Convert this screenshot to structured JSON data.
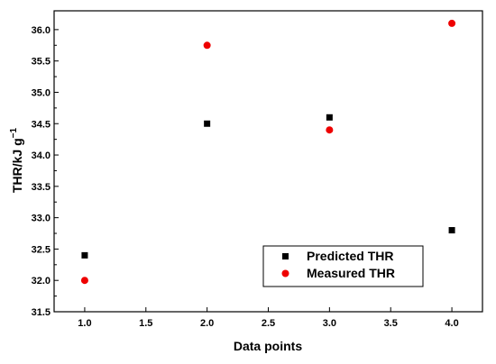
{
  "chart_data": {
    "type": "scatter",
    "xlabel": "Data points",
    "ylabel": "THR/kJ g",
    "ylabel_superscript": "−1",
    "xlim": [
      0.75,
      4.25
    ],
    "ylim": [
      31.5,
      36.3
    ],
    "xticks": [
      "1.0",
      "1.5",
      "2.0",
      "2.5",
      "3.0",
      "3.5",
      "4.0"
    ],
    "yticks": [
      "31.5",
      "32.0",
      "32.5",
      "33.0",
      "33.5",
      "34.0",
      "34.5",
      "35.0",
      "35.5",
      "36.0"
    ],
    "legend_placement": "bottom-right",
    "grid": false,
    "series": [
      {
        "name": "Predicted THR",
        "marker": "square",
        "color": "#000000",
        "x": [
          1.0,
          2.0,
          3.0,
          4.0
        ],
        "y": [
          32.4,
          34.5,
          34.6,
          32.8
        ]
      },
      {
        "name": "Measured THR",
        "marker": "circle",
        "color": "#ee0000",
        "x": [
          1.0,
          2.0,
          3.0,
          4.0
        ],
        "y": [
          32.0,
          35.75,
          34.4,
          36.1
        ]
      }
    ]
  }
}
